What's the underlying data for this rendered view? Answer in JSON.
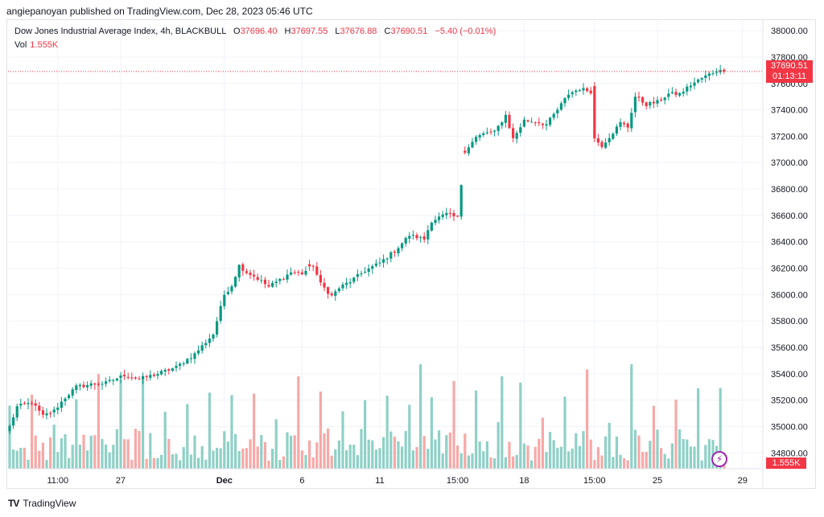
{
  "header": {
    "published_by": "angiepanoyan published on TradingView.com, Dec 28, 2023 05:46 UTC"
  },
  "legend": {
    "symbol": "Dow Jones Industrial Average Index, 4h, BLACKBULL",
    "open_label": "O",
    "open": "37696.40",
    "high_label": "H",
    "high": "37697.55",
    "low_label": "L",
    "low": "37676.88",
    "close_label": "C",
    "close": "37690.51",
    "change": "−5.40 (−0.01%)",
    "vol_label": "Vol",
    "vol": "1.555K"
  },
  "price_tag": {
    "price": "37690.51",
    "countdown": "01:13:11"
  },
  "vol_tag": "1.555K",
  "footer": {
    "brand": "TradingView",
    "logo": "TV"
  },
  "colors": {
    "up": "#089981",
    "down": "#f23645",
    "vol_up": "#8fd0c6",
    "vol_down": "#f7a9a7",
    "grid": "#f0f3fa"
  },
  "icons": {
    "flash": "lightning-icon"
  },
  "chart_data": {
    "type": "candlestick",
    "yticks": [
      "38000.00",
      "37800.00",
      "37600.00",
      "37400.00",
      "37200.00",
      "37000.00",
      "36800.00",
      "36600.00",
      "36400.00",
      "36200.00",
      "36000.00",
      "35800.00",
      "35600.00",
      "35400.00",
      "35200.00",
      "35000.00",
      "34800.00"
    ],
    "xticks": [
      {
        "label": "11:00",
        "index": 13
      },
      {
        "label": "27",
        "index": 30
      },
      {
        "label": "Dec",
        "index": 58,
        "bold": true
      },
      {
        "label": "6",
        "index": 79
      },
      {
        "label": "11",
        "index": 100
      },
      {
        "label": "15:00",
        "index": 121
      },
      {
        "label": "18",
        "index": 139
      },
      {
        "label": "15:00",
        "index": 158
      },
      {
        "label": "25",
        "index": 175
      },
      {
        "label": "29",
        "index": 198
      }
    ],
    "ylim": [
      34680,
      38080
    ],
    "last_price": 37690.51,
    "close_anchors": [
      [
        0,
        35000
      ],
      [
        2,
        35150
      ],
      [
        6,
        35180
      ],
      [
        9,
        35080
      ],
      [
        12,
        35120
      ],
      [
        15,
        35220
      ],
      [
        18,
        35300
      ],
      [
        22,
        35320
      ],
      [
        26,
        35330
      ],
      [
        31,
        35390
      ],
      [
        35,
        35360
      ],
      [
        40,
        35400
      ],
      [
        45,
        35450
      ],
      [
        50,
        35550
      ],
      [
        55,
        35700
      ],
      [
        58,
        36000
      ],
      [
        60,
        36070
      ],
      [
        62,
        36220
      ],
      [
        64,
        36170
      ],
      [
        66,
        36140
      ],
      [
        70,
        36060
      ],
      [
        74,
        36130
      ],
      [
        76,
        36170
      ],
      [
        79,
        36160
      ],
      [
        82,
        36220
      ],
      [
        84,
        36080
      ],
      [
        87,
        35990
      ],
      [
        89,
        36050
      ],
      [
        92,
        36100
      ],
      [
        96,
        36180
      ],
      [
        100,
        36240
      ],
      [
        104,
        36330
      ],
      [
        108,
        36450
      ],
      [
        112,
        36420
      ],
      [
        114,
        36560
      ],
      [
        118,
        36610
      ],
      [
        121,
        36580
      ],
      [
        123,
        37090
      ],
      [
        126,
        37190
      ],
      [
        129,
        37230
      ],
      [
        131,
        37230
      ],
      [
        134,
        37360
      ],
      [
        136,
        37180
      ],
      [
        139,
        37320
      ],
      [
        142,
        37310
      ],
      [
        145,
        37290
      ],
      [
        148,
        37400
      ],
      [
        151,
        37520
      ],
      [
        154,
        37560
      ],
      [
        157,
        37540
      ],
      [
        158,
        37180
      ],
      [
        160,
        37130
      ],
      [
        163,
        37230
      ],
      [
        165,
        37300
      ],
      [
        167,
        37270
      ],
      [
        169,
        37500
      ],
      [
        172,
        37440
      ],
      [
        175,
        37460
      ],
      [
        178,
        37520
      ],
      [
        181,
        37520
      ],
      [
        184,
        37590
      ],
      [
        187,
        37640
      ],
      [
        191,
        37700
      ],
      [
        193,
        37690
      ]
    ],
    "candles": 194,
    "big_moves": {
      "81": 36230,
      "123": 37090,
      "158": 37580
    },
    "volume_pattern": "green-red bars, with spikes"
  }
}
